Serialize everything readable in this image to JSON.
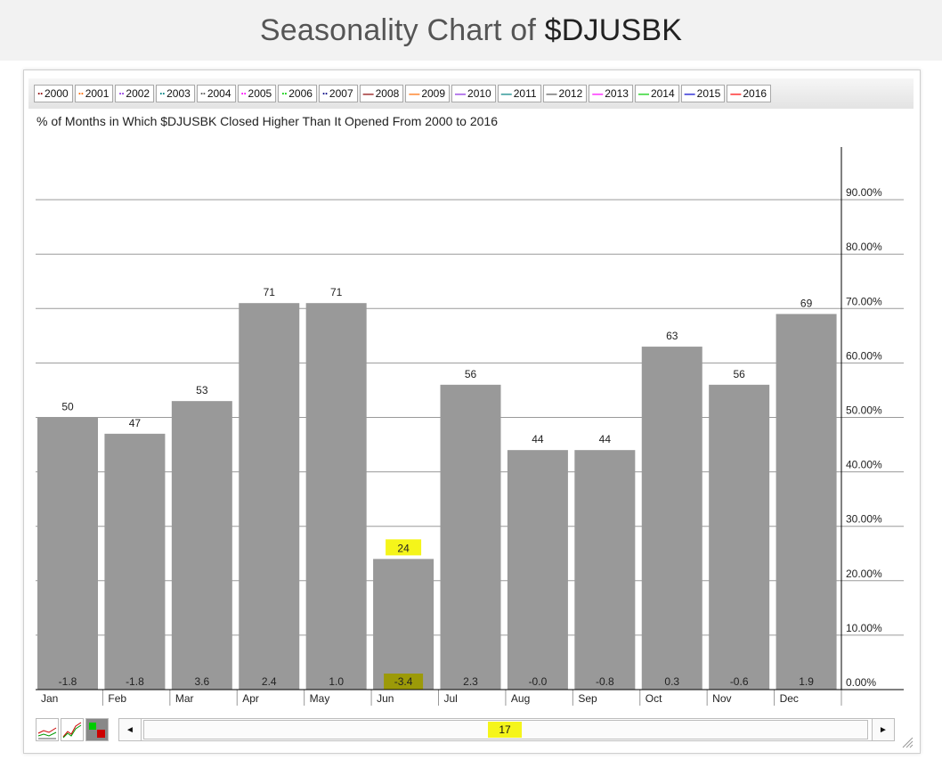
{
  "header": {
    "title_prefix": "Seasonality Chart of ",
    "symbol": "$DJUSBK"
  },
  "legend": [
    {
      "year": "2000",
      "color": "#8b0000",
      "style": "dots"
    },
    {
      "year": "2001",
      "color": "#ff6a00",
      "style": "dots"
    },
    {
      "year": "2002",
      "color": "#8a2be2",
      "style": "dots"
    },
    {
      "year": "2003",
      "color": "#008080",
      "style": "dots"
    },
    {
      "year": "2004",
      "color": "#555555",
      "style": "dots"
    },
    {
      "year": "2005",
      "color": "#ff00ff",
      "style": "dots"
    },
    {
      "year": "2006",
      "color": "#00cc00",
      "style": "dots"
    },
    {
      "year": "2007",
      "color": "#000080",
      "style": "dots"
    },
    {
      "year": "2008",
      "color": "#8b0000",
      "style": "line"
    },
    {
      "year": "2009",
      "color": "#ff6a00",
      "style": "line"
    },
    {
      "year": "2010",
      "color": "#8a2be2",
      "style": "line"
    },
    {
      "year": "2011",
      "color": "#008080",
      "style": "line"
    },
    {
      "year": "2012",
      "color": "#555555",
      "style": "line"
    },
    {
      "year": "2013",
      "color": "#ff00ff",
      "style": "line"
    },
    {
      "year": "2014",
      "color": "#00cc00",
      "style": "line"
    },
    {
      "year": "2015",
      "color": "#0000cc",
      "style": "line"
    },
    {
      "year": "2016",
      "color": "#ff0000",
      "style": "line"
    }
  ],
  "chart_data": {
    "type": "bar",
    "title": "% of Months in Which $DJUSBK Closed Higher Than It Opened From 2000 to 2016",
    "categories": [
      "Jan",
      "Feb",
      "Mar",
      "Apr",
      "May",
      "Jun",
      "Jul",
      "Aug",
      "Sep",
      "Oct",
      "Nov",
      "Dec"
    ],
    "values": [
      50,
      47,
      53,
      71,
      71,
      24,
      56,
      44,
      44,
      63,
      56,
      69
    ],
    "value_labels": [
      "50",
      "47",
      "53",
      "71",
      "71",
      "24",
      "56",
      "44",
      "44",
      "63",
      "56",
      "69"
    ],
    "avg_return_labels": [
      "-1.8",
      "-1.8",
      "3.6",
      "2.4",
      "1.0",
      "-3.4",
      "2.3",
      "-0.0",
      "-0.8",
      "0.3",
      "-0.6",
      "1.9"
    ],
    "highlighted_category": "Jun",
    "highlight_color": "#f5f51a",
    "bar_color": "#999999",
    "ylim": [
      0,
      100
    ],
    "yticks": [
      0,
      10,
      20,
      30,
      40,
      50,
      60,
      70,
      80,
      90
    ],
    "ytick_labels": [
      "0.00%",
      "10.00%",
      "20.00%",
      "30.00%",
      "40.00%",
      "50.00%",
      "60.00%",
      "70.00%",
      "80.00%",
      "90.00%"
    ],
    "y_axis_position": "right",
    "grid": true
  },
  "slider": {
    "left_arrow": "◄",
    "right_arrow": "►",
    "value": "17"
  },
  "tools": [
    {
      "name": "line-chart-icon"
    },
    {
      "name": "performance-chart-icon"
    },
    {
      "name": "bar-chart-icon"
    }
  ]
}
